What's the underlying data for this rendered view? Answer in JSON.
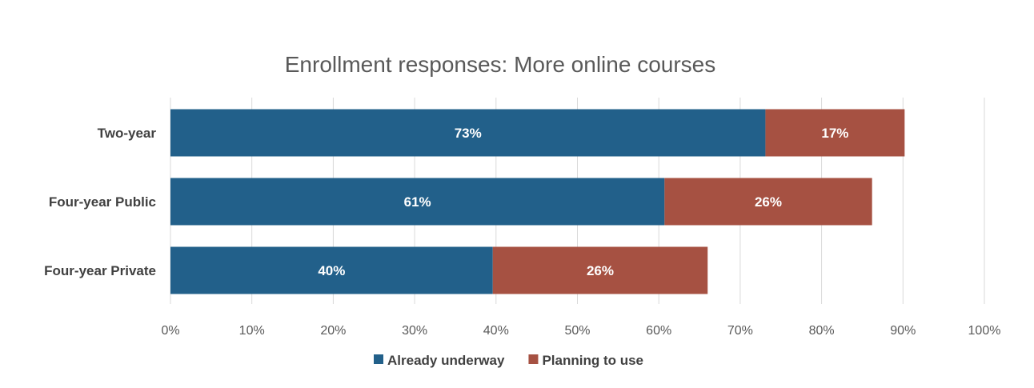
{
  "chart_data": {
    "type": "bar",
    "orientation": "horizontal",
    "stacked": true,
    "title": "Enrollment responses: More online courses",
    "xlabel": "",
    "ylabel": "",
    "xlim": [
      0,
      100
    ],
    "grid": true,
    "legend_position": "bottom",
    "categories": [
      "Two-year",
      "Four-year Public",
      "Four-year Private"
    ],
    "x_ticks": [
      "0%",
      "10%",
      "20%",
      "30%",
      "40%",
      "50%",
      "60%",
      "70%",
      "80%",
      "90%",
      "100%"
    ],
    "series": [
      {
        "name": "Already underway",
        "color": "#22608A",
        "values": [
          73.1,
          60.7,
          39.6
        ],
        "labels": [
          "73%",
          "61%",
          "40%"
        ]
      },
      {
        "name": "Planning to use",
        "color": "#A65142",
        "values": [
          17.1,
          25.5,
          26.4
        ],
        "labels": [
          "17%",
          "26%",
          "26%"
        ]
      }
    ]
  }
}
